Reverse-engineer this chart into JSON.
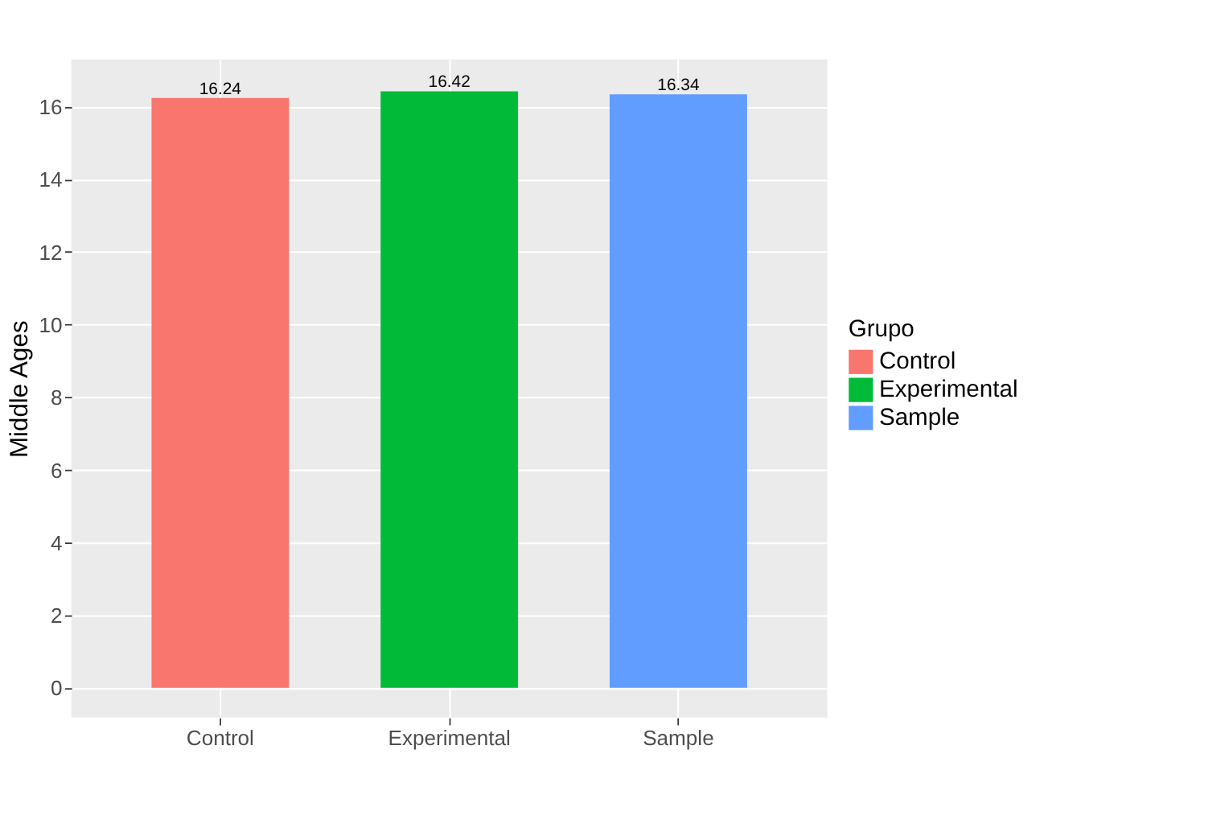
{
  "chart_data": {
    "type": "bar",
    "ylabel": "Middle Ages",
    "legend_title": "Grupo",
    "categories": [
      "Control",
      "Experimental",
      "Sample"
    ],
    "series": [
      {
        "name": "Control",
        "color": "#f8766d",
        "values": [
          16.24,
          null,
          null
        ]
      },
      {
        "name": "Experimental",
        "color": "#00ba38",
        "values": [
          null,
          16.42,
          null
        ]
      },
      {
        "name": "Sample",
        "color": "#619cff",
        "values": [
          null,
          null,
          16.34
        ]
      }
    ],
    "ylim": [
      -0.82,
      17.3
    ],
    "yticks": [
      0,
      2,
      4,
      6,
      8,
      10,
      12,
      14,
      16
    ],
    "grid": true,
    "legend": "right",
    "data_labels": true
  }
}
